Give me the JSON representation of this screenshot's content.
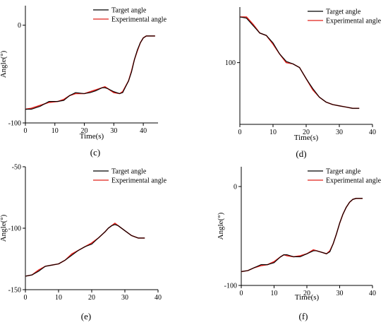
{
  "colors": {
    "target": "#000000",
    "experimental": "#e0201b",
    "axis": "#000000"
  },
  "chart_data": [
    {
      "type": "line",
      "panel_label": "(c)",
      "xlabel": "Time(s)",
      "ylabel": "Angle(°)",
      "xlim": [
        0,
        45
      ],
      "ylim": [
        -100,
        20
      ],
      "xticks": [
        0,
        10,
        20,
        30,
        40
      ],
      "yticks": [
        -100,
        0
      ],
      "legend": "top-right",
      "series": [
        {
          "name": "Target angle",
          "x": [
            0,
            2,
            5,
            8,
            11,
            13,
            15,
            17,
            20,
            22,
            24,
            26,
            27,
            28,
            30,
            32,
            33,
            35,
            36,
            37,
            38,
            39,
            40,
            41,
            42,
            44
          ],
          "y": [
            -86,
            -86,
            -83,
            -78,
            -78,
            -77,
            -72,
            -69,
            -70,
            -69,
            -67,
            -64,
            -64,
            -65,
            -68,
            -70,
            -69,
            -57,
            -48,
            -35,
            -25,
            -18,
            -13,
            -11,
            -11,
            -11
          ]
        },
        {
          "name": "Experimental angle",
          "x": [
            0,
            2,
            5,
            8,
            11,
            13,
            15,
            17,
            20,
            22,
            24,
            26,
            27,
            28,
            30,
            32,
            33,
            35,
            36,
            37,
            38,
            39,
            40,
            41,
            42,
            44
          ],
          "y": [
            -86,
            -85,
            -82,
            -79,
            -78,
            -76,
            -72,
            -70,
            -70,
            -68,
            -66,
            -64,
            -63,
            -65,
            -69,
            -70,
            -68,
            -57,
            -47,
            -35,
            -26,
            -18,
            -13,
            -11,
            -11,
            -11
          ]
        }
      ]
    },
    {
      "type": "line",
      "panel_label": "(d)",
      "xlabel": "Time(s)",
      "ylabel": "",
      "xlim": [
        0,
        40
      ],
      "ylim": [
        50,
        145
      ],
      "xticks": [
        0,
        10,
        20,
        30,
        40
      ],
      "yticks": [
        100
      ],
      "legend": "top-right",
      "series": [
        {
          "name": "Target angle",
          "x": [
            0,
            2,
            4,
            6,
            8,
            10,
            12,
            14,
            16,
            18,
            20,
            22,
            24,
            26,
            28,
            30,
            32,
            34,
            36
          ],
          "y": [
            137,
            136,
            130,
            124,
            122,
            116,
            107,
            101,
            99,
            96,
            87,
            79,
            72,
            68,
            66,
            65,
            64,
            63,
            63
          ]
        },
        {
          "name": "Experimental angle",
          "x": [
            0,
            2,
            4,
            6,
            8,
            10,
            12,
            14,
            16,
            18,
            20,
            22,
            24,
            26,
            28,
            30,
            32,
            34,
            36
          ],
          "y": [
            137,
            137,
            131,
            124,
            122,
            115,
            107,
            100,
            99,
            96,
            87,
            78,
            72,
            68,
            66,
            65,
            64,
            63,
            63
          ]
        }
      ]
    },
    {
      "type": "line",
      "panel_label": "(e)",
      "xlabel": "",
      "ylabel": "Angle(°)",
      "xlim": [
        0,
        40
      ],
      "ylim": [
        -150,
        -50
      ],
      "xticks": [
        0,
        10,
        20,
        30,
        40
      ],
      "yticks": [
        -150,
        -100,
        -50
      ],
      "legend": "top-right",
      "series": [
        {
          "name": "Target angle",
          "x": [
            0,
            2,
            4,
            6,
            8,
            10,
            12,
            14,
            16,
            18,
            20,
            22,
            24,
            25,
            26,
            27,
            28,
            30,
            32,
            34,
            36
          ],
          "y": [
            -139,
            -138,
            -135,
            -131,
            -130,
            -129,
            -126,
            -122,
            -118,
            -115,
            -113,
            -108,
            -103,
            -100,
            -98,
            -97,
            -98,
            -102,
            -106,
            -108,
            -108
          ]
        },
        {
          "name": "Experimental angle",
          "x": [
            0,
            2,
            4,
            6,
            8,
            10,
            12,
            14,
            16,
            18,
            20,
            22,
            24,
            25,
            26,
            27,
            28,
            30,
            32,
            34,
            36
          ],
          "y": [
            -139,
            -138,
            -134,
            -131,
            -130,
            -129,
            -126,
            -121,
            -118,
            -115,
            -112,
            -108,
            -103,
            -100,
            -98,
            -96,
            -98,
            -102,
            -106,
            -108,
            -108
          ]
        }
      ]
    },
    {
      "type": "line",
      "panel_label": "(f)",
      "xlabel": "Time(s)",
      "ylabel": "Angle(°)",
      "xlim": [
        0,
        40
      ],
      "ylim": [
        -100,
        20
      ],
      "xticks": [
        0,
        10,
        20,
        30,
        40
      ],
      "yticks": [
        -100,
        0
      ],
      "legend": "top-right",
      "series": [
        {
          "name": "Target angle",
          "x": [
            0,
            2,
            4,
            6,
            8,
            10,
            12,
            13,
            14,
            16,
            18,
            20,
            22,
            23,
            24,
            26,
            27,
            28,
            29,
            30,
            31,
            32,
            33,
            34,
            35,
            36,
            37
          ],
          "y": [
            -86,
            -85,
            -82,
            -79,
            -79,
            -77,
            -71,
            -69,
            -69,
            -71,
            -71,
            -68,
            -65,
            -65,
            -66,
            -68,
            -66,
            -58,
            -48,
            -37,
            -28,
            -21,
            -16,
            -13,
            -12,
            -12,
            -12
          ]
        },
        {
          "name": "Experimental angle",
          "x": [
            0,
            2,
            4,
            6,
            8,
            10,
            12,
            13,
            14,
            16,
            18,
            20,
            22,
            23,
            24,
            26,
            27,
            28,
            29,
            30,
            31,
            32,
            33,
            34,
            35,
            36,
            37
          ],
          "y": [
            -86,
            -85,
            -82,
            -80,
            -79,
            -76,
            -71,
            -69,
            -70,
            -71,
            -70,
            -68,
            -64,
            -65,
            -66,
            -68,
            -65,
            -58,
            -48,
            -37,
            -28,
            -21,
            -16,
            -13,
            -12,
            -12,
            -12
          ]
        }
      ]
    }
  ]
}
